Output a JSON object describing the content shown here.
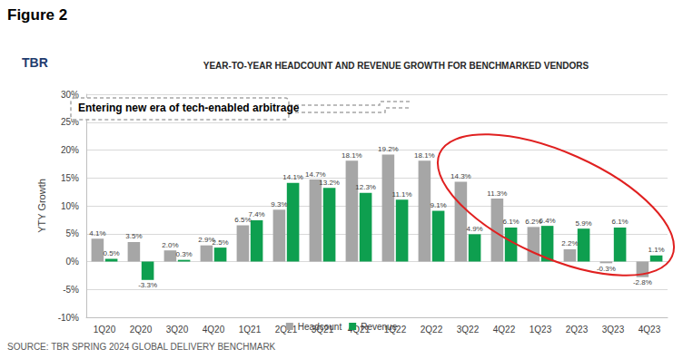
{
  "figure_label": "Figure 2",
  "logo": "TBR",
  "source": "SOURCE: TBR SPRING 2024 GLOBAL DELIVERY BENCHMARK",
  "chart_data": {
    "type": "bar",
    "title": "YEAR-TO-YEAR HEADCOUNT AND REVENUE GROWTH FOR BENCHMARKED VENDORS",
    "annotation": "Entering new era of tech-enabled arbitrage",
    "y_label": "YTY Growth",
    "categories": [
      "1Q20",
      "2Q20",
      "3Q20",
      "4Q20",
      "1Q21",
      "2Q21",
      "3Q21",
      "4Q21",
      "1Q22",
      "2Q22",
      "3Q22",
      "4Q22",
      "1Q23",
      "2Q23",
      "3Q23",
      "4Q23"
    ],
    "series": [
      {
        "name": "Headcount",
        "color": "#a6a6a6",
        "values": [
          4.1,
          3.5,
          2.0,
          2.9,
          6.5,
          9.3,
          14.7,
          18.1,
          19.2,
          18.1,
          14.3,
          11.3,
          6.2,
          2.2,
          -0.3,
          -2.8
        ],
        "value_labels": [
          "4.1%",
          "3.5%",
          "2.0%",
          "2.9%",
          "6.5%",
          "9.3%",
          "14.7%",
          "18.1%",
          "19.2%",
          "18.1%",
          "14.3%",
          "11.3%",
          "6.2%",
          "2.2%",
          "-0.3%",
          "-2.8%"
        ]
      },
      {
        "name": "Revenue",
        "color": "#0e9f4f",
        "values": [
          0.5,
          -3.3,
          0.3,
          2.5,
          7.4,
          14.1,
          13.2,
          12.3,
          11.1,
          9.1,
          4.9,
          6.1,
          6.4,
          5.9,
          6.1,
          1.1
        ],
        "value_labels": [
          "0.5%",
          "-3.3%",
          "0.3%",
          "2.5%",
          "7.4%",
          "14.1%",
          "13.2%",
          "12.3%",
          "11.1%",
          "9.1%",
          "4.9%",
          "6.1%",
          "6.4%",
          "5.9%",
          "6.1%",
          "1.1%"
        ]
      }
    ],
    "ylim": [
      -10,
      30
    ],
    "yticks": [
      {
        "value": -10,
        "label": "-10%"
      },
      {
        "value": -5,
        "label": "-5%"
      },
      {
        "value": 0,
        "label": "0%"
      },
      {
        "value": 5,
        "label": "5%"
      },
      {
        "value": 10,
        "label": "10%"
      },
      {
        "value": 15,
        "label": "15%"
      },
      {
        "value": 20,
        "label": "20%"
      },
      {
        "value": 25,
        "label": "25%"
      },
      {
        "value": 30,
        "label": "30%"
      }
    ],
    "grid": true,
    "legend": "bottom",
    "data_labels": true
  }
}
